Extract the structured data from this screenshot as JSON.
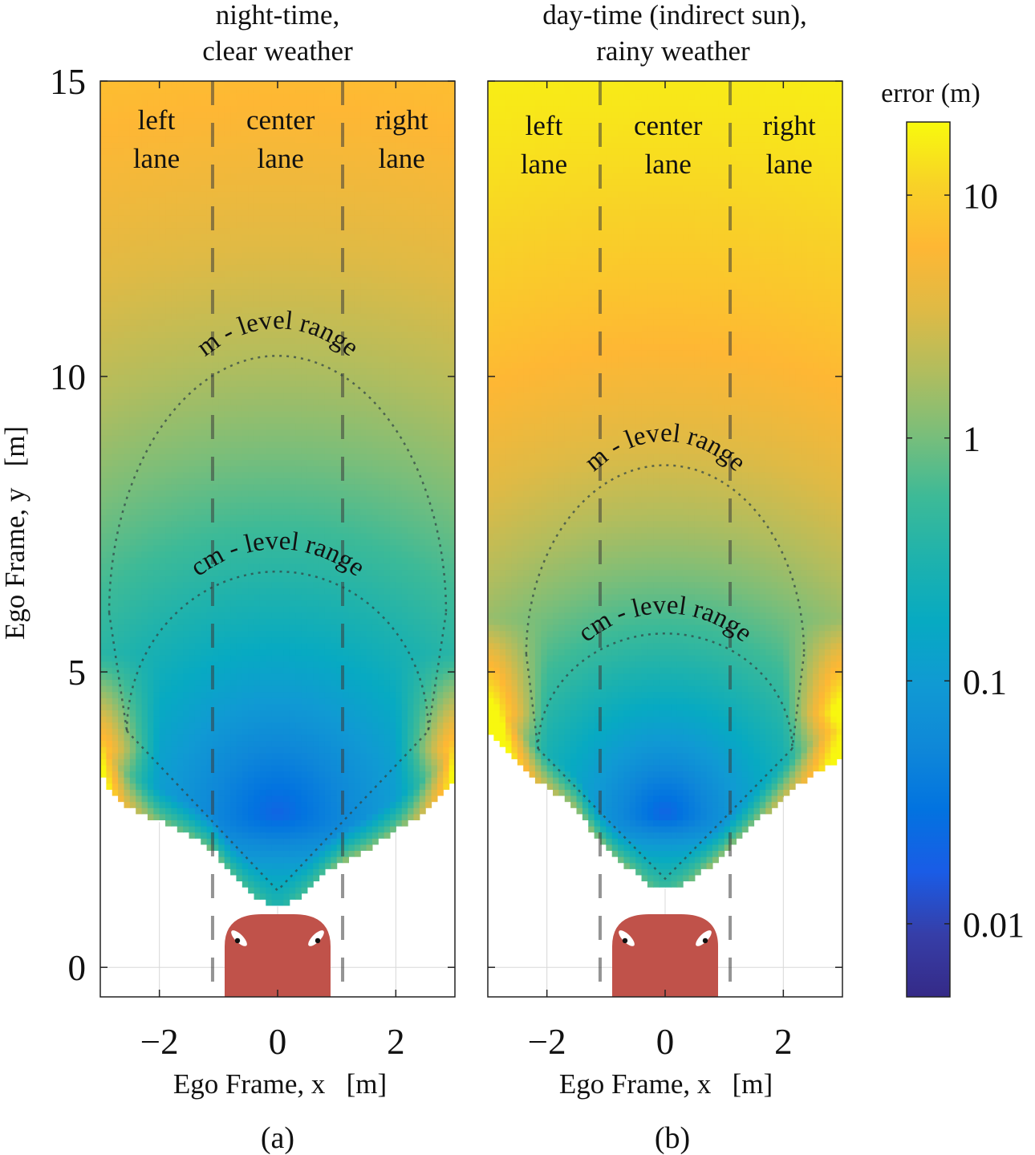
{
  "chart_data": [
    {
      "type": "heatmap",
      "panel_label": "(a)",
      "title": [
        "night-time,",
        "clear weather"
      ],
      "xlabel": "Ego Frame, x   [m]",
      "ylabel": "Ego Frame, y   [m]",
      "xlim": [
        -3,
        3
      ],
      "ylim": [
        -0.5,
        15
      ],
      "xticks": [
        -2,
        0,
        2
      ],
      "yticks": [
        0,
        5,
        10,
        15
      ],
      "lane_boundaries_x": [
        -1.1,
        1.1
      ],
      "lane_labels": [
        {
          "name": "left",
          "line2": "lane",
          "x": -2.05
        },
        {
          "name": "center",
          "line2": "lane",
          "x": 0.05
        },
        {
          "name": "right",
          "line2": "lane",
          "x": 2.1
        }
      ],
      "field": {
        "center_y": 2.6,
        "min_log_error": -1.7,
        "growth": 0.125,
        "top_log_error": 0.45,
        "edge_start_y": 3.7
      },
      "unmeasured_floor": [
        [
          -3.0,
          3.25
        ],
        [
          -2.6,
          2.75
        ],
        [
          -1.5,
          2.25
        ],
        [
          -1.1,
          2.0
        ],
        [
          -0.8,
          1.6
        ],
        [
          -0.5,
          1.3
        ],
        [
          -0.15,
          1.05
        ],
        [
          0.15,
          1.05
        ],
        [
          0.5,
          1.3
        ],
        [
          0.8,
          1.6
        ],
        [
          1.1,
          1.8
        ],
        [
          1.5,
          2.0
        ],
        [
          2.3,
          2.5
        ],
        [
          2.8,
          2.9
        ],
        [
          3.0,
          3.25
        ]
      ],
      "annotations": [
        {
          "text": "m - level range",
          "range_y": 10.35,
          "half_width_x": 2.85,
          "lower_y": 6.0
        },
        {
          "text": "cm - level range",
          "range_y": 6.7,
          "half_width_x": 2.55,
          "lower_y": 4.0
        }
      ],
      "fov_wedge": {
        "apex": [
          0.0,
          1.3
        ],
        "ends": [
          [
            -2.55,
            4.0
          ],
          [
            2.55,
            4.0
          ]
        ]
      },
      "ego_vehicle": {
        "color": "#c0524a"
      }
    },
    {
      "type": "heatmap",
      "panel_label": "(b)",
      "title": [
        "day-time (indirect sun),",
        "rainy weather"
      ],
      "xlabel": "Ego Frame, x   [m]",
      "ylabel": "",
      "xlim": [
        -3,
        3
      ],
      "ylim": [
        -0.5,
        15
      ],
      "xticks": [
        -2,
        0,
        2
      ],
      "yticks": [
        0,
        5,
        10,
        15
      ],
      "lane_boundaries_x": [
        -1.1,
        1.1
      ],
      "lane_labels": [
        {
          "name": "left",
          "line2": "lane",
          "x": -2.05
        },
        {
          "name": "center",
          "line2": "lane",
          "x": 0.05
        },
        {
          "name": "right",
          "line2": "lane",
          "x": 2.1
        }
      ],
      "field": {
        "center_y": 2.6,
        "min_log_error": -1.7,
        "growth": 0.19,
        "top_log_error": 0.75,
        "edge_start_y": 4.3
      },
      "unmeasured_floor": [
        [
          -3.0,
          4.0
        ],
        [
          -2.7,
          3.7
        ],
        [
          -2.2,
          3.2
        ],
        [
          -1.5,
          2.7
        ],
        [
          -1.1,
          2.1
        ],
        [
          -0.8,
          1.8
        ],
        [
          -0.5,
          1.6
        ],
        [
          -0.25,
          1.35
        ],
        [
          0.25,
          1.35
        ],
        [
          0.6,
          1.6
        ],
        [
          1.0,
          1.9
        ],
        [
          1.5,
          2.4
        ],
        [
          2.0,
          2.9
        ],
        [
          2.7,
          3.4
        ],
        [
          3.0,
          3.5
        ]
      ],
      "annotations": [
        {
          "text": "m - level range",
          "range_y": 8.5,
          "half_width_x": 2.35,
          "lower_y": 5.3
        },
        {
          "text": "cm - level range",
          "range_y": 5.65,
          "half_width_x": 2.15,
          "lower_y": 3.7
        }
      ],
      "fov_wedge": {
        "apex": [
          0.0,
          1.5
        ],
        "ends": [
          [
            -2.15,
            3.7
          ],
          [
            2.15,
            3.7
          ]
        ]
      },
      "ego_vehicle": {
        "color": "#c0524a"
      }
    }
  ],
  "colorbar": {
    "title": "error (m)",
    "scale": "log",
    "range": [
      0.005,
      20
    ],
    "ticks": [
      {
        "value": 10,
        "label": "10"
      },
      {
        "value": 1,
        "label": "1"
      },
      {
        "value": 0.1,
        "label": "0.1"
      },
      {
        "value": 0.01,
        "label": "0.01"
      }
    ],
    "colormap": "parula",
    "colormap_stops": [
      "#352a87",
      "#363ea8",
      "#1a5ce6",
      "#0273e0",
      "#0f88d8",
      "#109ad3",
      "#07aac2",
      "#1eb2ad",
      "#3dba97",
      "#7abe7a",
      "#b1bd5e",
      "#dfba45",
      "#feb734",
      "#f8d227",
      "#f8fa0d"
    ]
  }
}
